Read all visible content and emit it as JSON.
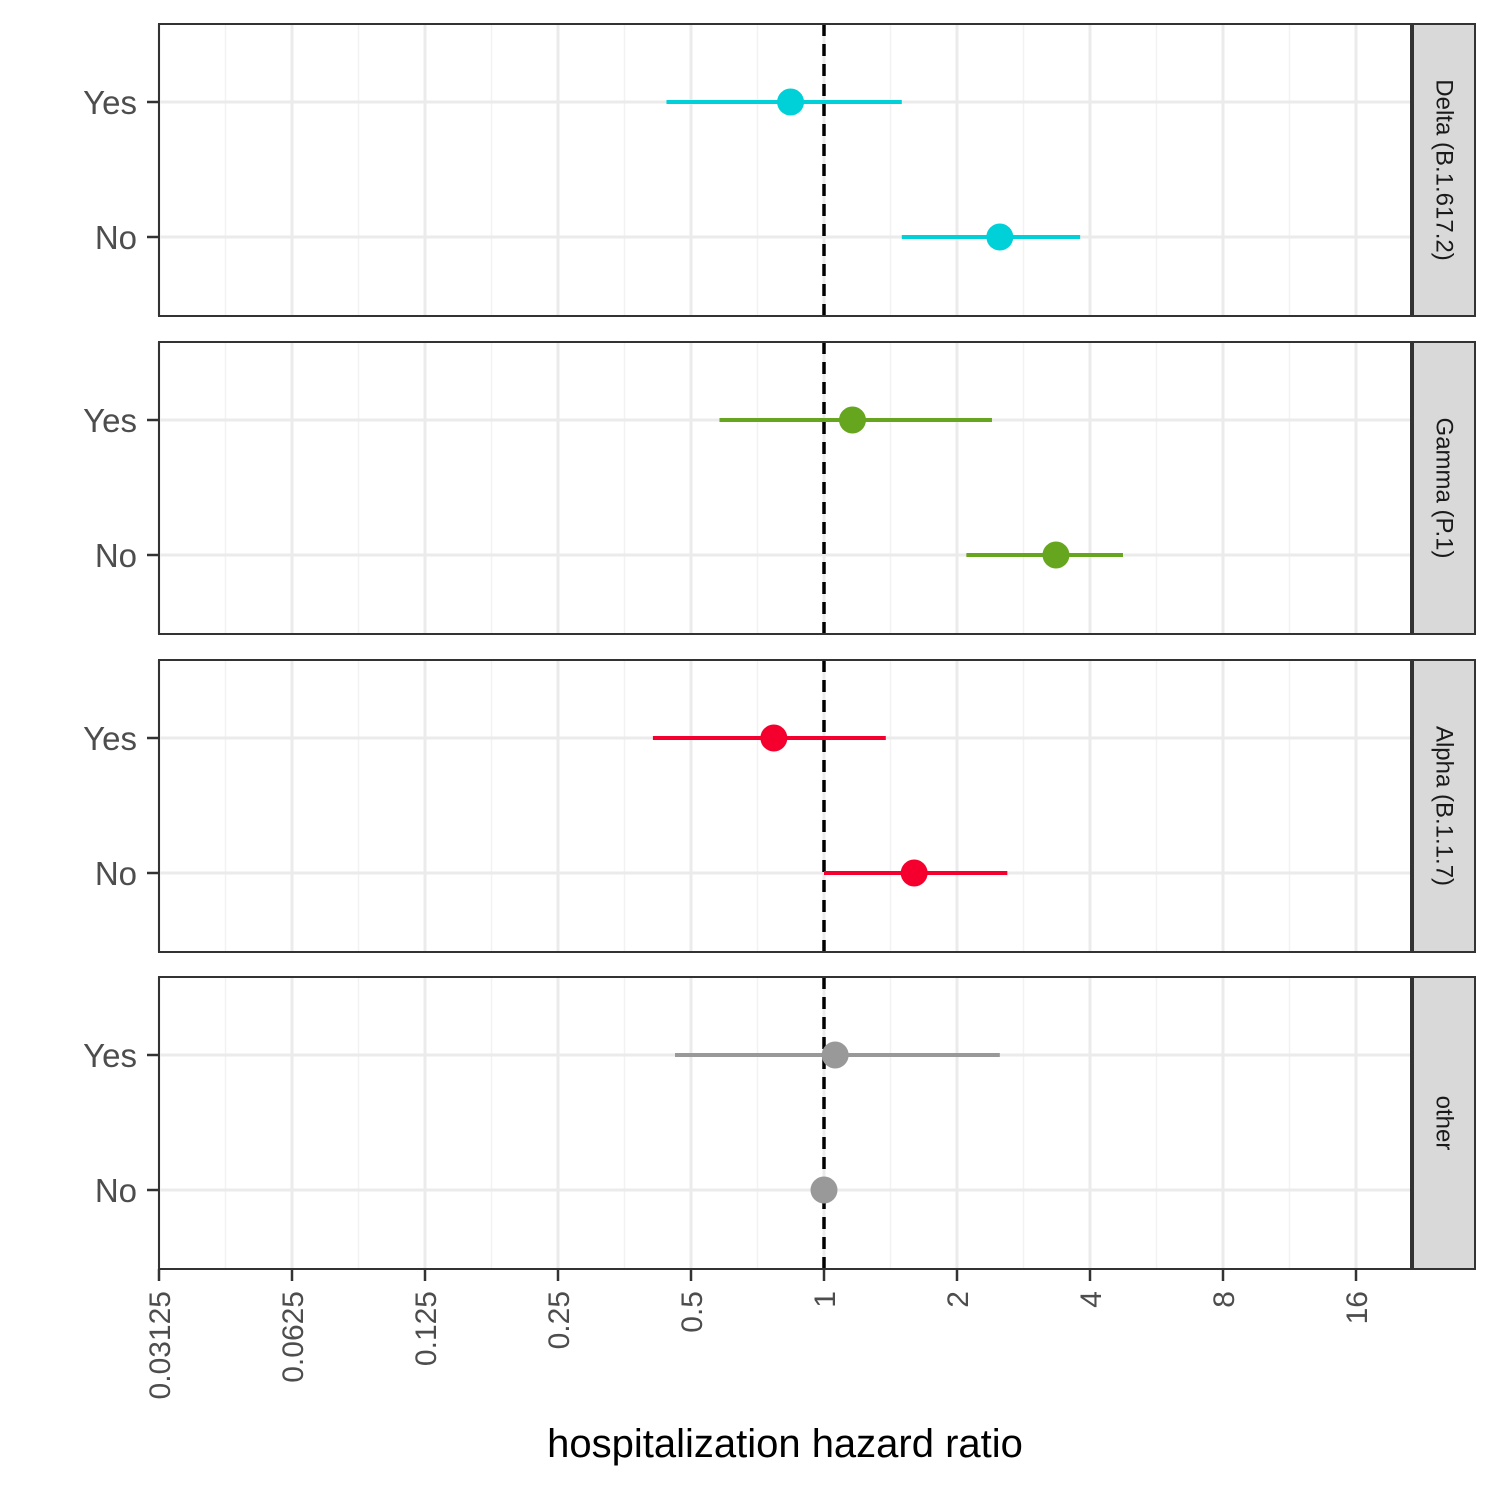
{
  "chart_data": {
    "type": "scatter",
    "subtype": "forest-plot",
    "xlabel": "hospitalization hazard ratio",
    "x_scale": "log2",
    "xlim": [
      0.03125,
      22
    ],
    "x_ticks": [
      {
        "value": 0.03125,
        "label": "0.03125"
      },
      {
        "value": 0.0625,
        "label": "0.0625"
      },
      {
        "value": 0.125,
        "label": "0.125"
      },
      {
        "value": 0.25,
        "label": "0.25"
      },
      {
        "value": 0.5,
        "label": "0.5"
      },
      {
        "value": 1,
        "label": "1"
      },
      {
        "value": 2,
        "label": "2"
      },
      {
        "value": 4,
        "label": "4"
      },
      {
        "value": 8,
        "label": "8"
      },
      {
        "value": 16,
        "label": "16"
      }
    ],
    "reference_line": 1,
    "grid": true,
    "y_categories": [
      "Yes",
      "No"
    ],
    "panels": [
      {
        "label": "Delta (B.1.617.2)",
        "color": "#00d0d8",
        "rows": [
          {
            "category": "Yes",
            "estimate": 0.84,
            "lower": 0.44,
            "upper": 1.5
          },
          {
            "category": "No",
            "estimate": 2.5,
            "lower": 1.5,
            "upper": 3.8
          }
        ]
      },
      {
        "label": "Gamma (P.1)",
        "color": "#66a61e",
        "rows": [
          {
            "category": "Yes",
            "estimate": 1.16,
            "lower": 0.58,
            "upper": 2.4
          },
          {
            "category": "No",
            "estimate": 3.35,
            "lower": 2.1,
            "upper": 4.75
          }
        ]
      },
      {
        "label": "Alpha (B.1.1.7)",
        "color": "#f5002e",
        "rows": [
          {
            "category": "Yes",
            "estimate": 0.77,
            "lower": 0.41,
            "upper": 1.38
          },
          {
            "category": "No",
            "estimate": 1.6,
            "lower": 1.0,
            "upper": 2.6
          }
        ]
      },
      {
        "label": "other",
        "color": "#999999",
        "rows": [
          {
            "category": "Yes",
            "estimate": 1.06,
            "lower": 0.46,
            "upper": 2.5
          },
          {
            "category": "No",
            "estimate": 1.0,
            "lower": 1.0,
            "upper": 1.0
          }
        ]
      }
    ]
  }
}
